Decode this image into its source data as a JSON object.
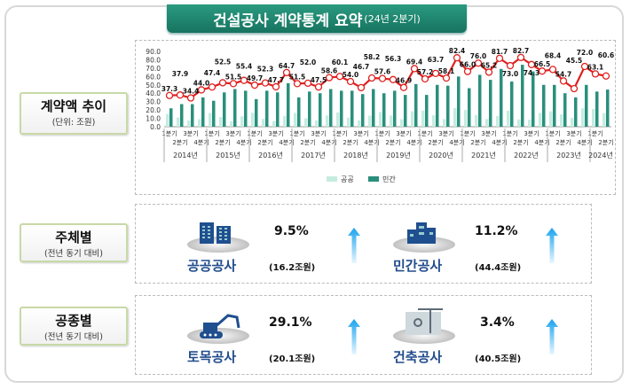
{
  "title": {
    "main": "건설공사 계약통계 요약",
    "sub": "(24년 2분기)"
  },
  "trend_label": {
    "title": "계약액 추이",
    "sub": "(단위: 조원)"
  },
  "chart_data": {
    "type": "bar+line",
    "ylim": [
      0,
      90
    ],
    "yticks": [
      "0.0",
      "10.0",
      "20.0",
      "30.0",
      "40.0",
      "50.0",
      "60.0",
      "70.0",
      "80.0",
      "90.0"
    ],
    "quarter_labels": [
      "1분기",
      "2분기",
      "3분기",
      "4분기"
    ],
    "years": [
      "2014년",
      "2015년",
      "2016년",
      "2017년",
      "2018년",
      "2019년",
      "2020년",
      "2021년",
      "2022년",
      "2023년",
      "2024년"
    ],
    "legend": [
      "공공",
      "민간"
    ],
    "legend_position": "bottom",
    "colors": {
      "public": "#c6ece0",
      "private": "#2a8f7c",
      "total_line": "#e02020"
    },
    "total": [
      37.3,
      37.9,
      34.4,
      44.0,
      47.4,
      52.5,
      51.5,
      55.4,
      49.7,
      52.3,
      47.7,
      64.7,
      51.5,
      52.0,
      47.5,
      58.6,
      60.1,
      54.0,
      46.7,
      58.2,
      57.6,
      56.3,
      46.9,
      69.4,
      57.2,
      63.7,
      58.1,
      82.4,
      66.0,
      76.0,
      65.2,
      81.7,
      73.0,
      82.7,
      74.3,
      66.5,
      68.4,
      54.7,
      45.5,
      72.0,
      63.1,
      60.6
    ],
    "private": [
      22,
      27,
      27,
      35,
      31,
      41,
      45,
      43,
      33,
      43,
      41,
      52,
      35,
      42,
      40,
      45,
      43,
      43,
      39,
      45,
      40,
      43,
      38,
      51,
      38,
      50,
      49,
      60,
      46,
      62,
      56,
      69,
      54,
      74,
      66,
      50,
      50,
      40,
      35,
      50,
      42,
      44.4
    ],
    "public": [
      15.3,
      10.9,
      7.4,
      9.0,
      16.4,
      11.5,
      6.5,
      12.4,
      16.7,
      9.3,
      6.7,
      12.7,
      16.5,
      10.0,
      7.5,
      13.6,
      17.1,
      11.0,
      7.7,
      13.2,
      17.6,
      13.3,
      8.9,
      18.4,
      19.2,
      13.7,
      9.1,
      22.4,
      20.0,
      14.0,
      9.2,
      12.7,
      19.0,
      8.7,
      8.3,
      16.5,
      18.4,
      14.7,
      10.5,
      22.0,
      21.1,
      16.2
    ]
  },
  "by_entity": {
    "label": {
      "title": "주체별",
      "sub": "(전년 동기 대비)"
    },
    "items": [
      {
        "name": "공공공사",
        "pct": "9.5%",
        "amount": "(16.2조원)",
        "trend": "up",
        "icon": "office-building-icon"
      },
      {
        "name": "민간공사",
        "pct": "11.2%",
        "amount": "(44.4조원)",
        "trend": "up",
        "icon": "apartment-building-icon"
      }
    ]
  },
  "by_type": {
    "label": {
      "title": "공종별",
      "sub": "(전년 동기 대비)"
    },
    "items": [
      {
        "name": "토목공사",
        "pct": "29.1%",
        "amount": "(20.1조원)",
        "trend": "up",
        "icon": "excavator-icon"
      },
      {
        "name": "건축공사",
        "pct": "3.4%",
        "amount": "(40.5조원)",
        "trend": "up",
        "icon": "crane-icon"
      }
    ]
  }
}
